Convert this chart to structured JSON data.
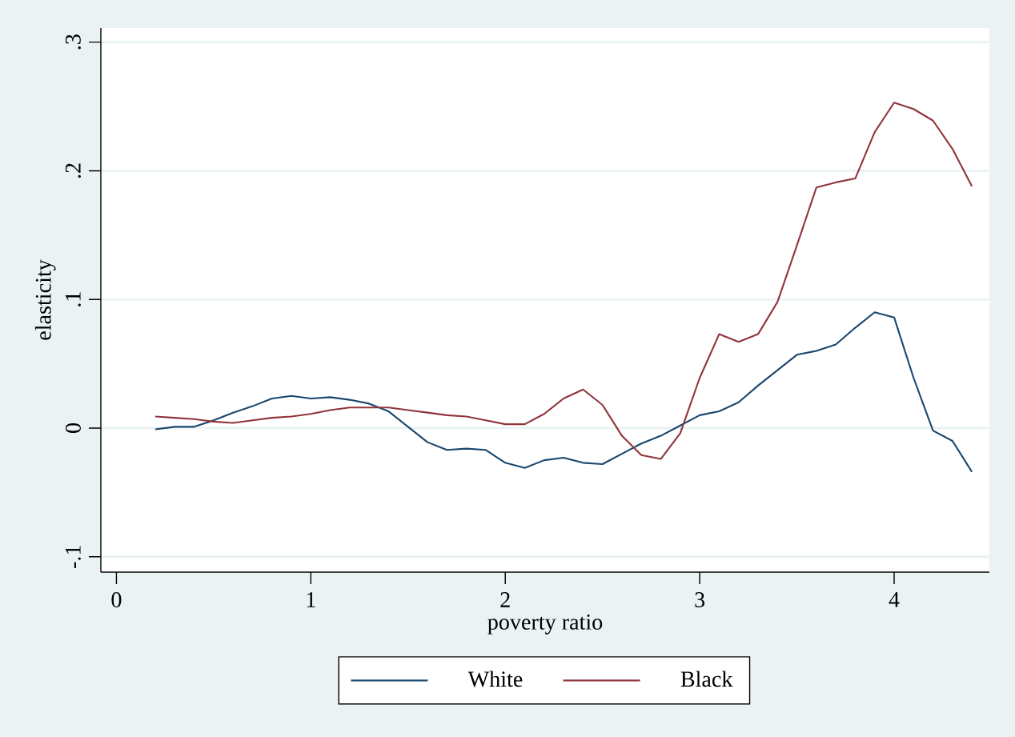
{
  "chart_data": {
    "type": "line",
    "xlabel": "poverty ratio",
    "ylabel": "elasticity",
    "x": [
      0.2,
      0.3,
      0.4,
      0.5,
      0.6,
      0.7,
      0.8,
      0.9,
      1.0,
      1.1,
      1.2,
      1.3,
      1.4,
      1.5,
      1.6,
      1.7,
      1.8,
      1.9,
      2.0,
      2.1,
      2.2,
      2.3,
      2.4,
      2.5,
      2.6,
      2.7,
      2.8,
      2.9,
      3.0,
      3.1,
      3.2,
      3.3,
      3.4,
      3.5,
      3.6,
      3.7,
      3.8,
      3.9,
      4.0,
      4.1,
      4.2,
      4.3,
      4.4
    ],
    "series": [
      {
        "name": "White",
        "color": "#1a476f",
        "values": [
          -0.001,
          0.001,
          0.001,
          0.006,
          0.012,
          0.017,
          0.023,
          0.025,
          0.023,
          0.024,
          0.022,
          0.019,
          0.013,
          0.001,
          -0.011,
          -0.017,
          -0.016,
          -0.017,
          -0.027,
          -0.031,
          -0.025,
          -0.023,
          -0.027,
          -0.028,
          -0.02,
          -0.012,
          -0.006,
          0.002,
          0.01,
          0.013,
          0.02,
          0.033,
          0.045,
          0.057,
          0.06,
          0.065,
          0.078,
          0.09,
          0.086,
          0.039,
          -0.002,
          -0.01,
          -0.034
        ]
      },
      {
        "name": "Black",
        "color": "#90353b",
        "values": [
          0.009,
          0.008,
          0.007,
          0.005,
          0.004,
          0.006,
          0.008,
          0.009,
          0.011,
          0.014,
          0.016,
          0.016,
          0.016,
          0.014,
          0.012,
          0.01,
          0.009,
          0.006,
          0.003,
          0.003,
          0.011,
          0.023,
          0.03,
          0.018,
          -0.006,
          -0.021,
          -0.024,
          -0.004,
          0.039,
          0.073,
          0.067,
          0.073,
          0.098,
          0.142,
          0.187,
          0.191,
          0.194,
          0.23,
          0.253,
          0.248,
          0.239,
          0.217,
          0.188
        ]
      }
    ],
    "xlim": [
      -0.08,
      4.49
    ],
    "ylim": [
      -0.112,
      0.311
    ],
    "xticks": [
      0,
      1,
      2,
      3,
      4
    ],
    "yticks": [
      {
        "value": -0.1,
        "label": "-.1"
      },
      0,
      {
        "value": 0.1,
        "label": ".1"
      },
      {
        "value": 0.2,
        "label": ".2"
      },
      {
        "value": 0.3,
        "label": ".3"
      }
    ],
    "grid": "y",
    "legend": "bottom",
    "line_style": "solid",
    "marker": "none"
  }
}
